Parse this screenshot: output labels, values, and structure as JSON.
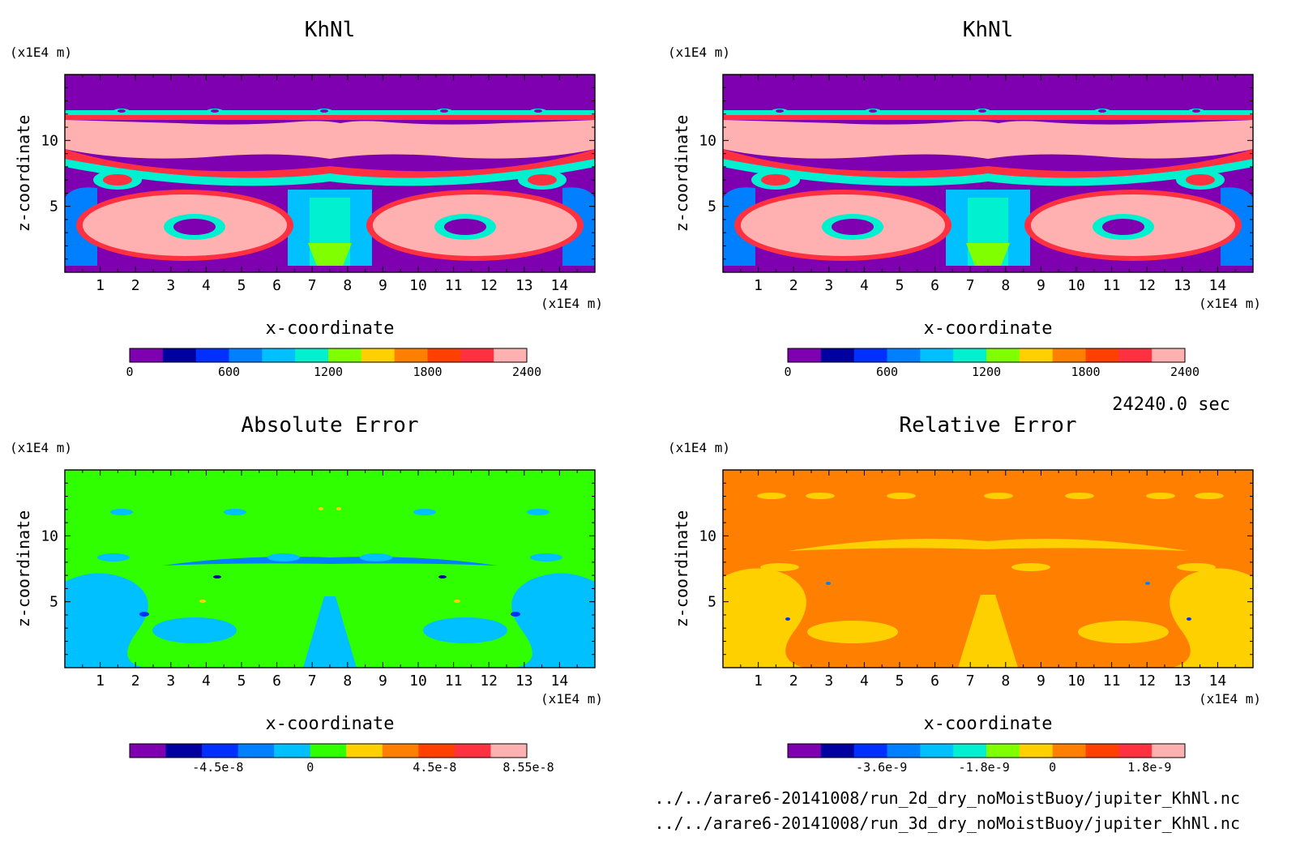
{
  "time_label": "24240.0 sec",
  "files": [
    "../../arare6-20141008/run_2d_dry_noMoistBuoy/jupiter_KhNl.nc",
    "../../arare6-20141008/run_3d_dry_noMoistBuoy/jupiter_KhNl.nc"
  ],
  "chart_data": [
    {
      "type": "heatmap",
      "title": "KhNl",
      "xlabel": "x-coordinate",
      "ylabel": "z-coordinate",
      "x_unit": "(x1E4 m)",
      "y_unit": "(x1E4 m)",
      "xlim": [
        0,
        15
      ],
      "ylim": [
        0,
        15
      ],
      "x_ticks": [
        "1",
        "2",
        "3",
        "4",
        "5",
        "6",
        "7",
        "8",
        "9",
        "10",
        "11",
        "12",
        "13",
        "14"
      ],
      "y_ticks": [
        "5",
        "10"
      ],
      "colorbar": {
        "colors": [
          "#7f00b0",
          "#0000a0",
          "#0030ff",
          "#0080ff",
          "#00c0ff",
          "#00f0d0",
          "#80ff00",
          "#ffd000",
          "#ff8000",
          "#ff4000",
          "#ff3040",
          "#ffb0b0"
        ],
        "tick_labels": [
          "0",
          "600",
          "1200",
          "1800",
          "2400"
        ]
      }
    },
    {
      "type": "heatmap",
      "title": "KhNl",
      "xlabel": "x-coordinate",
      "ylabel": "z-coordinate",
      "x_unit": "(x1E4 m)",
      "y_unit": "(x1E4 m)",
      "xlim": [
        0,
        15
      ],
      "ylim": [
        0,
        15
      ],
      "x_ticks": [
        "1",
        "2",
        "3",
        "4",
        "5",
        "6",
        "7",
        "8",
        "9",
        "10",
        "11",
        "12",
        "13",
        "14"
      ],
      "y_ticks": [
        "5",
        "10"
      ],
      "colorbar": {
        "colors": [
          "#7f00b0",
          "#0000a0",
          "#0030ff",
          "#0080ff",
          "#00c0ff",
          "#00f0d0",
          "#80ff00",
          "#ffd000",
          "#ff8000",
          "#ff4000",
          "#ff3040",
          "#ffb0b0"
        ],
        "tick_labels": [
          "0",
          "600",
          "1200",
          "1800",
          "2400"
        ]
      }
    },
    {
      "type": "heatmap",
      "title": "Absolute Error",
      "xlabel": "x-coordinate",
      "ylabel": "z-coordinate",
      "x_unit": "(x1E4 m)",
      "y_unit": "(x1E4 m)",
      "xlim": [
        0,
        15
      ],
      "ylim": [
        0,
        15
      ],
      "x_ticks": [
        "1",
        "2",
        "3",
        "4",
        "5",
        "6",
        "7",
        "8",
        "9",
        "10",
        "11",
        "12",
        "13",
        "14"
      ],
      "y_ticks": [
        "5",
        "10"
      ],
      "colorbar": {
        "colors": [
          "#7f00b0",
          "#0000a0",
          "#0030ff",
          "#0080ff",
          "#00c0ff",
          "#30ff00",
          "#ffd000",
          "#ff8000",
          "#ff4000",
          "#ff3040",
          "#ffb0b0"
        ],
        "tick_labels": [
          "-4.5e-8",
          "0",
          "4.5e-8",
          "8.55e-8"
        ]
      }
    },
    {
      "type": "heatmap",
      "title": "Relative Error",
      "xlabel": "x-coordinate",
      "ylabel": "z-coordinate",
      "x_unit": "(x1E4 m)",
      "y_unit": "(x1E4 m)",
      "xlim": [
        0,
        15
      ],
      "ylim": [
        0,
        15
      ],
      "x_ticks": [
        "1",
        "2",
        "3",
        "4",
        "5",
        "6",
        "7",
        "8",
        "9",
        "10",
        "11",
        "12",
        "13",
        "14"
      ],
      "y_ticks": [
        "5",
        "10"
      ],
      "colorbar": {
        "colors": [
          "#7f00b0",
          "#0000a0",
          "#0030ff",
          "#0080ff",
          "#00c0ff",
          "#00f0d0",
          "#80ff00",
          "#ffd000",
          "#ff8000",
          "#ff4000",
          "#ff3040",
          "#ffb0b0"
        ],
        "tick_labels": [
          "-3.6e-9",
          "-1.8e-9",
          "0",
          "1.8e-9"
        ]
      }
    }
  ]
}
